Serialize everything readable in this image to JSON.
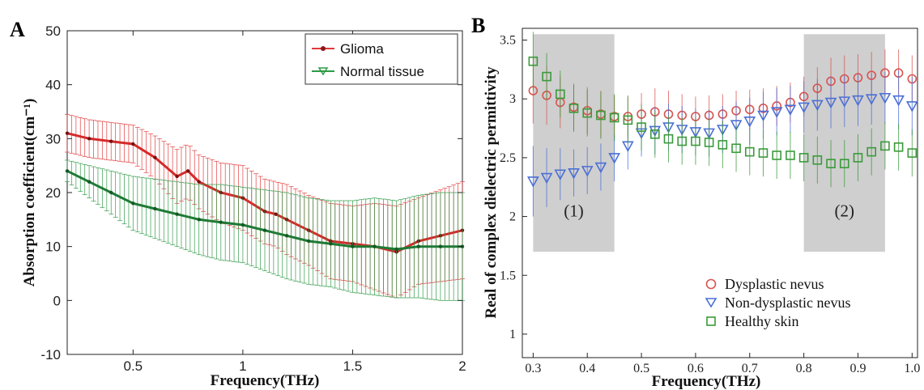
{
  "panel_labels": {
    "a": "A",
    "b": "B"
  },
  "chart_data": [
    {
      "type": "line",
      "xlabel": "Frequency(THz)",
      "ylabel": "Absorption coefficient(cm⁻¹)",
      "xlim": [
        0.2,
        2.0
      ],
      "ylim": [
        -10,
        50
      ],
      "xticks": [
        0.5,
        1,
        1.5,
        2
      ],
      "xtick_labels": [
        "0.5",
        "1",
        "1.5",
        "2"
      ],
      "yticks": [
        -10,
        0,
        10,
        20,
        30,
        40,
        50
      ],
      "ytick_labels": [
        "-10",
        "0",
        "10",
        "20",
        "30",
        "40",
        "50"
      ],
      "legend_position": "top-right",
      "series": [
        {
          "name": "Glioma",
          "color": "#e03a3a",
          "x": [
            0.2,
            0.3,
            0.4,
            0.5,
            0.6,
            0.7,
            0.75,
            0.8,
            0.9,
            1.0,
            1.1,
            1.15,
            1.2,
            1.3,
            1.4,
            1.5,
            1.6,
            1.7,
            1.8,
            1.9,
            2.0
          ],
          "y": [
            31,
            30,
            29.5,
            29,
            26.5,
            23,
            24,
            22,
            20,
            19,
            16.5,
            16,
            15,
            13,
            11,
            10.5,
            10,
            9,
            11,
            12,
            13
          ],
          "error": [
            3.5,
            3.5,
            3.5,
            3.5,
            4,
            5,
            5,
            5,
            5.5,
            6,
            6,
            6,
            6.5,
            6.5,
            7,
            7,
            8,
            8.5,
            8,
            8.5,
            9
          ]
        },
        {
          "name": "Normal tissue",
          "color": "#2e9a46",
          "x": [
            0.2,
            0.3,
            0.4,
            0.5,
            0.6,
            0.7,
            0.8,
            0.9,
            1.0,
            1.1,
            1.2,
            1.3,
            1.4,
            1.5,
            1.6,
            1.7,
            1.8,
            1.9,
            2.0
          ],
          "y": [
            24,
            22,
            20,
            18,
            17,
            16,
            15,
            14.5,
            14,
            13,
            12,
            11,
            10.5,
            10,
            10,
            9.5,
            10,
            10,
            10
          ],
          "error": [
            2,
            3,
            4,
            5,
            5.5,
            6,
            6.5,
            7,
            7,
            7.5,
            8,
            8,
            8,
            8.5,
            9,
            9,
            9.5,
            10,
            10
          ]
        }
      ]
    },
    {
      "type": "scatter",
      "xlabel": "Frequency(THz)",
      "ylabel": "Real of complex dielectric permittivity",
      "xlim": [
        0.28,
        1.01
      ],
      "ylim": [
        0.8,
        3.6
      ],
      "xticks": [
        0.3,
        0.4,
        0.5,
        0.6,
        0.7,
        0.8,
        0.9,
        1.0
      ],
      "xtick_labels": [
        "0.3",
        "0.4",
        "0.5",
        "0.6",
        "0.7",
        "0.8",
        "0.9",
        "1.0"
      ],
      "yticks": [
        1,
        1.5,
        2,
        2.5,
        3,
        3.5
      ],
      "ytick_labels": [
        "1",
        "1.5",
        "2",
        "2.5",
        "3",
        "3.5"
      ],
      "legend_position": "bottom-right",
      "regions": [
        {
          "label": "(1)",
          "x0": 0.3,
          "x1": 0.45,
          "y0": 1.7,
          "y1": 3.55
        },
        {
          "label": "(2)",
          "x0": 0.8,
          "x1": 0.95,
          "y0": 1.7,
          "y1": 3.55
        }
      ],
      "x": [
        0.3,
        0.325,
        0.35,
        0.375,
        0.4,
        0.425,
        0.45,
        0.475,
        0.5,
        0.525,
        0.55,
        0.575,
        0.6,
        0.625,
        0.65,
        0.675,
        0.7,
        0.725,
        0.75,
        0.775,
        0.8,
        0.825,
        0.85,
        0.875,
        0.9,
        0.925,
        0.95,
        0.975,
        1.0
      ],
      "series": [
        {
          "name": "Dysplastic nevus",
          "color": "#d9534f",
          "marker": "circle",
          "y": [
            3.07,
            3.03,
            2.97,
            2.93,
            2.9,
            2.87,
            2.85,
            2.85,
            2.87,
            2.89,
            2.87,
            2.86,
            2.85,
            2.86,
            2.87,
            2.9,
            2.91,
            2.92,
            2.94,
            2.97,
            3.02,
            3.09,
            3.15,
            3.17,
            3.18,
            3.2,
            3.22,
            3.22,
            3.17
          ],
          "error": [
            0.28,
            0.25,
            0.22,
            0.2,
            0.2,
            0.2,
            0.18,
            0.18,
            0.18,
            0.2,
            0.2,
            0.18,
            0.17,
            0.17,
            0.17,
            0.17,
            0.17,
            0.17,
            0.17,
            0.17,
            0.17,
            0.18,
            0.2,
            0.2,
            0.2,
            0.2,
            0.2,
            0.2,
            0.2
          ]
        },
        {
          "name": "Non-dysplastic nevus",
          "color": "#4a6fd6",
          "marker": "triangle-down",
          "y": [
            2.3,
            2.33,
            2.36,
            2.37,
            2.39,
            2.42,
            2.5,
            2.6,
            2.71,
            2.73,
            2.76,
            2.74,
            2.72,
            2.71,
            2.74,
            2.78,
            2.81,
            2.86,
            2.89,
            2.91,
            2.93,
            2.95,
            2.97,
            2.98,
            2.99,
            3.0,
            3.01,
            2.99,
            2.94
          ],
          "error": [
            0.3,
            0.25,
            0.22,
            0.2,
            0.2,
            0.2,
            0.2,
            0.2,
            0.2,
            0.2,
            0.2,
            0.2,
            0.2,
            0.2,
            0.2,
            0.2,
            0.2,
            0.2,
            0.2,
            0.2,
            0.22,
            0.22,
            0.22,
            0.22,
            0.22,
            0.22,
            0.22,
            0.25,
            0.25
          ]
        },
        {
          "name": "Healthy skin",
          "color": "#3a9a3a",
          "marker": "square",
          "y": [
            3.32,
            3.19,
            3.04,
            2.92,
            2.88,
            2.86,
            2.84,
            2.82,
            2.76,
            2.7,
            2.66,
            2.64,
            2.64,
            2.63,
            2.61,
            2.58,
            2.55,
            2.54,
            2.52,
            2.52,
            2.5,
            2.48,
            2.45,
            2.45,
            2.5,
            2.55,
            2.6,
            2.59,
            2.54
          ],
          "error": [
            0.25,
            0.2,
            0.2,
            0.2,
            0.2,
            0.2,
            0.2,
            0.2,
            0.2,
            0.2,
            0.2,
            0.2,
            0.2,
            0.2,
            0.2,
            0.2,
            0.2,
            0.2,
            0.2,
            0.2,
            0.2,
            0.2,
            0.2,
            0.2,
            0.2,
            0.2,
            0.2,
            0.2,
            0.2
          ]
        }
      ]
    }
  ]
}
